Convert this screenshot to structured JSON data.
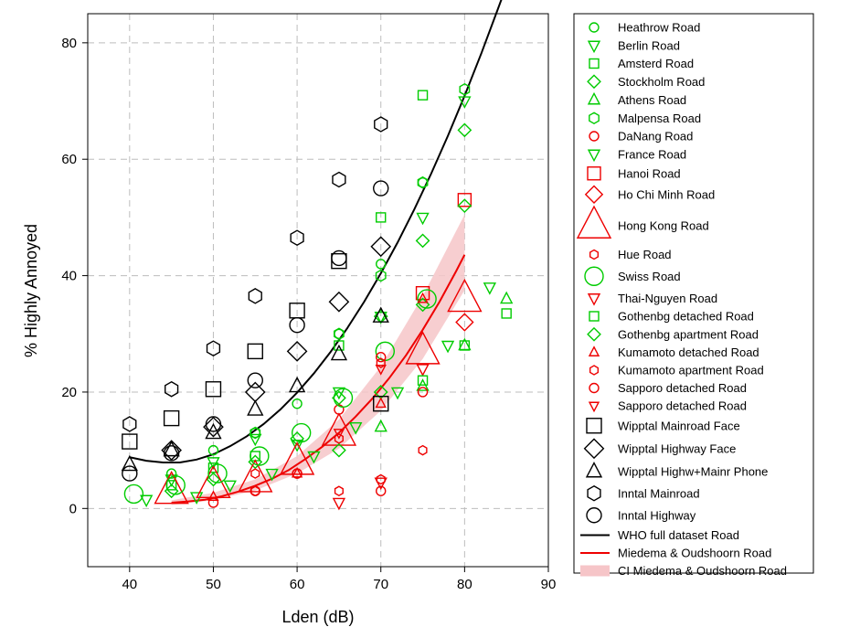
{
  "chart_data": {
    "type": "scatter",
    "xlabel": "Lden (dB)",
    "ylabel": "% Highly Annoyed",
    "xlim": [
      35,
      90
    ],
    "ylim": [
      -10,
      85
    ],
    "xticks": [
      40,
      50,
      60,
      70,
      80,
      90
    ],
    "yticks": [
      0,
      20,
      40,
      60,
      80
    ],
    "grid": true,
    "legend_position": "right",
    "series": [
      {
        "name": "Heathrow Road",
        "marker": "circle",
        "color": "#00cc00",
        "size": 5,
        "points": [
          [
            45,
            6
          ],
          [
            50,
            10
          ],
          [
            55,
            13
          ],
          [
            60,
            18
          ],
          [
            65,
            30
          ],
          [
            70,
            42
          ],
          [
            75,
            56
          ]
        ]
      },
      {
        "name": "Berlin Road",
        "marker": "triangle-down",
        "color": "#00cc00",
        "size": 6,
        "points": [
          [
            45,
            5
          ],
          [
            50,
            8
          ],
          [
            55,
            12
          ],
          [
            60,
            11
          ],
          [
            65,
            20
          ],
          [
            70,
            33
          ],
          [
            75,
            50
          ],
          [
            80,
            70
          ]
        ]
      },
      {
        "name": "Amsterd Road",
        "marker": "square",
        "color": "#00cc00",
        "size": 5,
        "points": [
          [
            45,
            4
          ],
          [
            50,
            7
          ],
          [
            55,
            9
          ],
          [
            65,
            28
          ],
          [
            70,
            50
          ],
          [
            75,
            71
          ],
          [
            80,
            28
          ]
        ]
      },
      {
        "name": "Stockholm Road",
        "marker": "diamond",
        "color": "#00cc00",
        "size": 6,
        "points": [
          [
            45,
            3
          ],
          [
            50,
            5
          ],
          [
            55,
            8
          ],
          [
            60,
            12
          ],
          [
            65,
            19
          ],
          [
            70,
            33
          ],
          [
            75,
            46
          ],
          [
            80,
            65
          ]
        ]
      },
      {
        "name": "Athens Road",
        "marker": "triangle-up",
        "color": "#00cc00",
        "size": 6,
        "points": [
          [
            70,
            14
          ],
          [
            75,
            21
          ],
          [
            80,
            28
          ],
          [
            85,
            36
          ]
        ]
      },
      {
        "name": "Malpensa Road",
        "marker": "hexagon",
        "color": "#00cc00",
        "size": 6,
        "points": [
          [
            55,
            13
          ],
          [
            65,
            30
          ],
          [
            70,
            40
          ],
          [
            75,
            56
          ],
          [
            80,
            72
          ]
        ]
      },
      {
        "name": "DaNang Road",
        "marker": "circle",
        "color": "#ee0000",
        "size": 5,
        "points": [
          [
            50,
            1
          ],
          [
            55,
            3
          ],
          [
            60,
            6
          ],
          [
            65,
            17
          ],
          [
            70,
            3
          ],
          [
            75,
            20
          ]
        ]
      },
      {
        "name": "France Road",
        "marker": "triangle-down",
        "color": "#00cc00",
        "size": 6,
        "points": [
          [
            42,
            1.5
          ],
          [
            48,
            2
          ],
          [
            52,
            4
          ],
          [
            57,
            6
          ],
          [
            62,
            9
          ],
          [
            67,
            14
          ],
          [
            72,
            20
          ],
          [
            78,
            28
          ],
          [
            83,
            38
          ]
        ]
      },
      {
        "name": "Hanoi Road",
        "marker": "square",
        "color": "#ee0000",
        "size": 7,
        "points": [
          [
            75,
            37
          ],
          [
            80,
            53
          ]
        ]
      },
      {
        "name": "Ho Chi Minh Road",
        "marker": "diamond",
        "color": "#ee0000",
        "size": 8,
        "points": [
          [
            80,
            32
          ]
        ]
      },
      {
        "name": "Hong Kong Road",
        "marker": "triangle-up",
        "color": "#ee0000",
        "size": 18,
        "points": [
          [
            45,
            3
          ],
          [
            50,
            4
          ],
          [
            55,
            5
          ],
          [
            60,
            8
          ],
          [
            65,
            13
          ],
          [
            75,
            27
          ],
          [
            80,
            36
          ]
        ]
      },
      {
        "name": "Hue Road",
        "marker": "hexagon",
        "color": "#ee0000",
        "size": 5,
        "points": [
          [
            55,
            3
          ],
          [
            65,
            3
          ],
          [
            70,
            5
          ],
          [
            75,
            10
          ]
        ]
      },
      {
        "name": "Swiss Road",
        "marker": "circle",
        "color": "#00cc00",
        "size": 10,
        "points": [
          [
            40.5,
            2.5
          ],
          [
            45.5,
            4
          ],
          [
            50.5,
            6
          ],
          [
            55.5,
            9
          ],
          [
            60.5,
            13
          ],
          [
            65.5,
            19
          ],
          [
            70.5,
            27
          ],
          [
            75.5,
            36
          ]
        ]
      },
      {
        "name": "Thai-Nguyen Road",
        "marker": "triangle-down",
        "color": "#ee0000",
        "size": 6,
        "points": [
          [
            65,
            1
          ],
          [
            70,
            4.5
          ],
          [
            75,
            24
          ]
        ]
      },
      {
        "name": "Gothenbg detached Road",
        "marker": "square",
        "color": "#00cc00",
        "size": 5,
        "points": [
          [
            75,
            22
          ],
          [
            85,
            33.5
          ]
        ]
      },
      {
        "name": "Gothenbg apartment Road",
        "marker": "diamond",
        "color": "#00cc00",
        "size": 6,
        "points": [
          [
            65,
            10
          ],
          [
            70,
            20
          ],
          [
            75,
            35
          ],
          [
            80,
            52
          ]
        ]
      },
      {
        "name": "Kumamoto detached Road",
        "marker": "triangle-up",
        "color": "#ee0000",
        "size": 5,
        "points": [
          [
            50,
            2
          ],
          [
            60,
            6
          ],
          [
            70,
            18
          ],
          [
            75,
            36
          ]
        ]
      },
      {
        "name": "Kumamoto apartment Road",
        "marker": "hexagon",
        "color": "#ee0000",
        "size": 5,
        "points": [
          [
            55,
            6
          ],
          [
            65,
            12
          ],
          [
            70,
            25
          ]
        ]
      },
      {
        "name": "Sapporo detached Road",
        "marker": "circle",
        "color": "#ee0000",
        "size": 5,
        "points": [
          [
            60,
            6
          ],
          [
            70,
            26
          ]
        ]
      },
      {
        "name": "Sapporo detached Road",
        "marker": "triangle-down",
        "color": "#ee0000",
        "size": 5,
        "points": [
          [
            65,
            13
          ],
          [
            70,
            24
          ]
        ]
      },
      {
        "name": "Wipptal Mainroad Face",
        "marker": "square",
        "color": "#000000",
        "size": 8,
        "points": [
          [
            40,
            11.5
          ],
          [
            45,
            15.5
          ],
          [
            50,
            20.5
          ],
          [
            55,
            27
          ],
          [
            60,
            34
          ],
          [
            65,
            42.5
          ],
          [
            70,
            18
          ]
        ]
      },
      {
        "name": "Wipptal Highway Face",
        "marker": "diamond",
        "color": "#000000",
        "size": 9,
        "points": [
          [
            45,
            10
          ],
          [
            50,
            14
          ],
          [
            55,
            20
          ],
          [
            60,
            27
          ],
          [
            65,
            35.5
          ],
          [
            70,
            45
          ]
        ]
      },
      {
        "name": "Wipptal Highw+Mainr Phone",
        "marker": "triangle-up",
        "color": "#000000",
        "size": 8,
        "points": [
          [
            40,
            7.5
          ],
          [
            45,
            10
          ],
          [
            50,
            13
          ],
          [
            55,
            17
          ],
          [
            60,
            21
          ],
          [
            65,
            26.5
          ],
          [
            70,
            33
          ]
        ]
      },
      {
        "name": "Inntal Mainroad",
        "marker": "hexagon",
        "color": "#000000",
        "size": 8,
        "points": [
          [
            40,
            14.5
          ],
          [
            45,
            20.5
          ],
          [
            50,
            27.5
          ],
          [
            55,
            36.5
          ],
          [
            60,
            46.5
          ],
          [
            65,
            56.5
          ],
          [
            70,
            66
          ]
        ]
      },
      {
        "name": "Inntal Highway",
        "marker": "circle",
        "color": "#000000",
        "size": 8,
        "points": [
          [
            40,
            6
          ],
          [
            45,
            9.5
          ],
          [
            50,
            14.5
          ],
          [
            55,
            22
          ],
          [
            60,
            31.5
          ],
          [
            65,
            43
          ],
          [
            70,
            55
          ]
        ]
      }
    ],
    "lines": [
      {
        "name": "WHO full dataset Road",
        "color": "#000000",
        "points": [
          [
            40,
            8.8
          ],
          [
            42,
            8.2
          ],
          [
            44,
            7.9
          ],
          [
            46,
            7.9
          ],
          [
            48,
            8.4
          ],
          [
            50,
            9.3
          ],
          [
            52,
            10.7
          ],
          [
            54,
            12.4
          ],
          [
            56,
            14.5
          ],
          [
            58,
            17.0
          ],
          [
            60,
            19.9
          ],
          [
            62,
            23.2
          ],
          [
            64,
            26.9
          ],
          [
            66,
            31.0
          ],
          [
            68,
            35.5
          ],
          [
            70,
            40.4
          ],
          [
            72,
            45.7
          ],
          [
            74,
            51.4
          ],
          [
            76,
            57.5
          ],
          [
            78,
            64.0
          ],
          [
            80,
            70.9
          ],
          [
            82,
            78.2
          ],
          [
            84,
            85.9
          ],
          [
            85,
            89.8
          ]
        ]
      },
      {
        "name": "Miedema & Oudshoorn Road",
        "color": "#ee0000",
        "points": [
          [
            45,
            1.0
          ],
          [
            47,
            1.2
          ],
          [
            49,
            1.5
          ],
          [
            51,
            2.1
          ],
          [
            53,
            2.9
          ],
          [
            55,
            3.9
          ],
          [
            57,
            5.1
          ],
          [
            59,
            6.6
          ],
          [
            61,
            8.5
          ],
          [
            63,
            10.6
          ],
          [
            65,
            13.0
          ],
          [
            67,
            15.8
          ],
          [
            69,
            18.9
          ],
          [
            71,
            22.4
          ],
          [
            73,
            26.3
          ],
          [
            75,
            30.7
          ],
          [
            77,
            35.5
          ],
          [
            79,
            40.8
          ],
          [
            80,
            43.6
          ]
        ]
      }
    ],
    "bands": [
      {
        "name": "CI Miedema & Oudshoorn Road",
        "color": "#f6c5c8",
        "points": [
          [
            45,
            0.6,
            1.4
          ],
          [
            50,
            1.4,
            2.7
          ],
          [
            55,
            3.1,
            5.0
          ],
          [
            60,
            6.0,
            9.0
          ],
          [
            65,
            10.3,
            15.3
          ],
          [
            70,
            16.8,
            24.4
          ],
          [
            75,
            25.7,
            36.5
          ],
          [
            80,
            37.5,
            50.5
          ]
        ]
      }
    ]
  }
}
